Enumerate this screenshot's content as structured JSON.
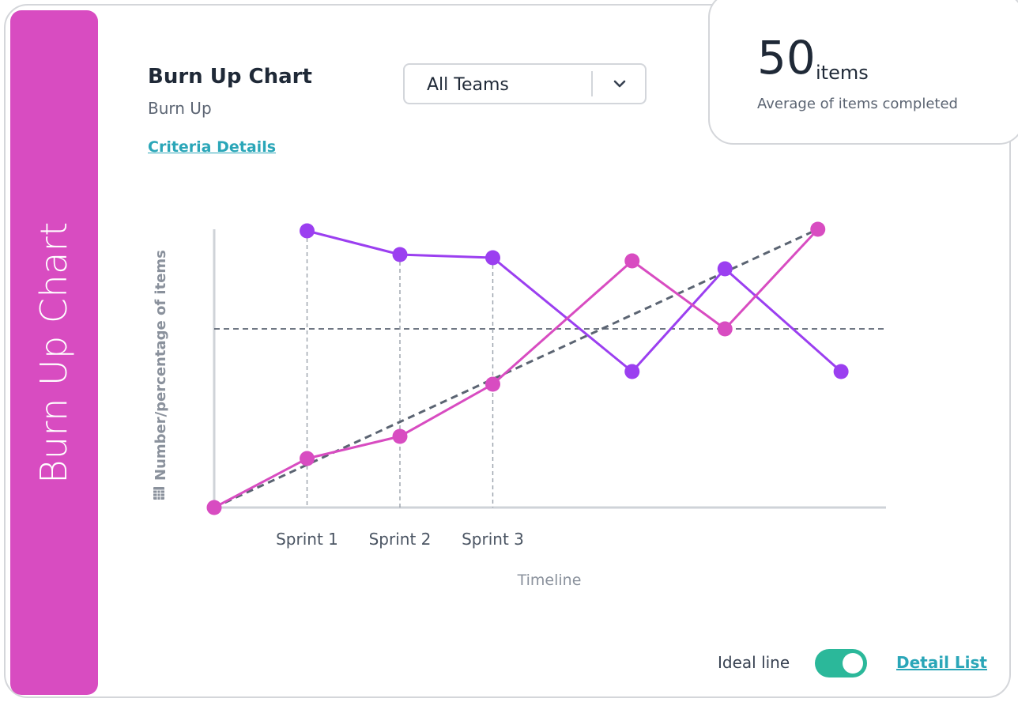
{
  "side_band": {
    "title": "Burn Up Chart",
    "color": "#d84cc1"
  },
  "header": {
    "title": "Burn Up Chart",
    "subtitle": "Burn Up",
    "criteria_link": "Criteria Details"
  },
  "team_filter": {
    "selected": "All Teams",
    "icon": "chevron-down-icon"
  },
  "stat": {
    "value": "50",
    "unit": "items",
    "label": "Average of items completed"
  },
  "chart_data": {
    "type": "line",
    "ylabel": "Number/percentage of items",
    "ylabel_icon": "table-icon",
    "xlabel": "Timeline",
    "x_tick_labels": [
      "Sprint 1",
      "Sprint 2",
      "Sprint 3"
    ],
    "x": [
      0,
      1,
      2,
      3,
      4.5,
      5.5,
      6.5
    ],
    "ylim": [
      0,
      100
    ],
    "grid": false,
    "series": [
      {
        "color": "#9b3ff0",
        "points": [
          [
            1,
            87.5
          ],
          [
            2,
            80
          ],
          [
            3,
            79
          ],
          [
            4.5,
            43
          ],
          [
            5.5,
            75.5
          ],
          [
            6.75,
            43
          ]
        ]
      },
      {
        "color": "#d84cc1",
        "points": [
          [
            0,
            0
          ],
          [
            1,
            15.5
          ],
          [
            2,
            22.5
          ],
          [
            3,
            39
          ],
          [
            4.5,
            78
          ],
          [
            5.5,
            56.5
          ],
          [
            6.5,
            88
          ]
        ]
      }
    ],
    "ideal_line": {
      "color": "#5b6472",
      "points": [
        [
          0,
          0
        ],
        [
          6.5,
          88
        ]
      ]
    },
    "reference_line_y": 56.5
  },
  "footer": {
    "ideal_line_label": "Ideal line",
    "ideal_line_on": true,
    "toggle_color": "#2bb89a",
    "detail_link": "Detail List"
  }
}
